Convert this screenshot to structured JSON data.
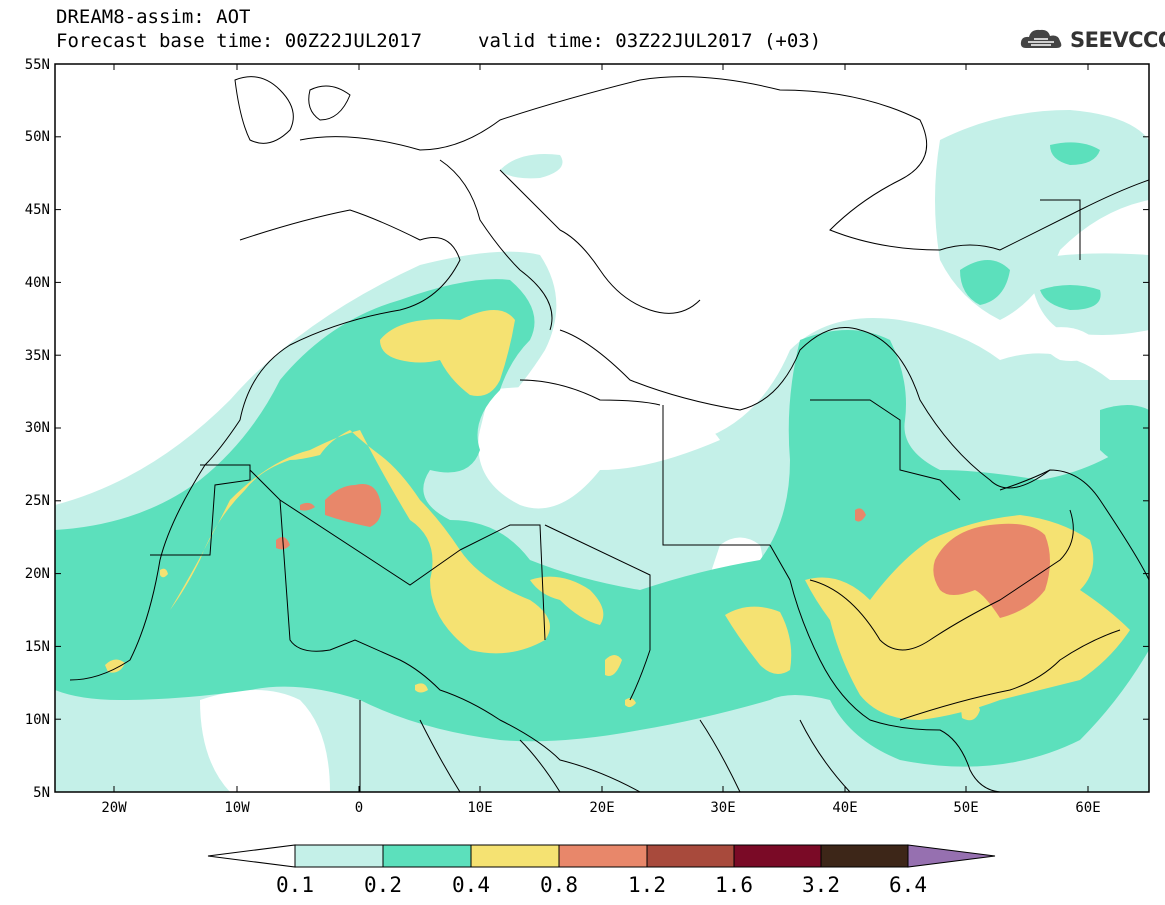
{
  "header": {
    "title_line1": "DREAM8-assim: AOT",
    "title_line2": "Forecast base time: 00Z22JUL2017",
    "valid_time": "valid time: 03Z22JUL2017 (+03)",
    "logo_text": "SEEVCCC",
    "logo_icon": "cloud-icon"
  },
  "axes": {
    "lat_labels": [
      "55N",
      "50N",
      "45N",
      "40N",
      "35N",
      "30N",
      "25N",
      "20N",
      "15N",
      "10N",
      "5N"
    ],
    "lon_labels": [
      "20W",
      "10W",
      "0",
      "10E",
      "20E",
      "30E",
      "40E",
      "50E",
      "60E"
    ]
  },
  "colorbar": {
    "labels": [
      "0.1",
      "0.2",
      "0.4",
      "0.8",
      "1.2",
      "1.6",
      "3.2",
      "6.4"
    ],
    "colors": [
      "#ffffff",
      "#c4f0e8",
      "#5ce0bc",
      "#f5e272",
      "#e8876a",
      "#a84a3c",
      "#7a0a26",
      "#3d2618",
      "#9670b0"
    ]
  },
  "map_colors": {
    "level1": "#c4f0e8",
    "level2": "#5ce0bc",
    "level3": "#f5e272",
    "level4": "#e8876a",
    "border": "#000000"
  }
}
